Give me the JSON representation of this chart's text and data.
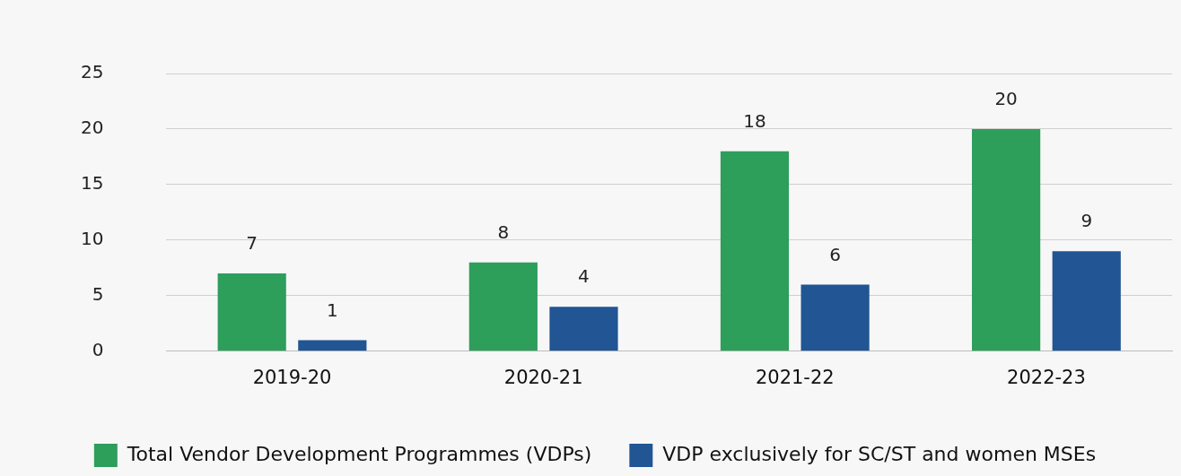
{
  "chart_data": {
    "type": "bar",
    "categories": [
      "2019-20",
      "2020-21",
      "2021-22",
      "2022-23"
    ],
    "series": [
      {
        "name": "Total Vendor Development Programmes (VDPs)",
        "color": "#2e9e5b",
        "values": [
          7,
          8,
          18,
          20
        ]
      },
      {
        "name": "VDP exclusively for SC/ST and women MSEs",
        "color": "#215594",
        "values": [
          1,
          4,
          6,
          9
        ]
      }
    ],
    "ylim": [
      0,
      25
    ],
    "yticks": [
      0,
      5,
      10,
      15,
      20,
      25
    ],
    "grid": "y",
    "legend": "bottom",
    "data_labels": true
  }
}
